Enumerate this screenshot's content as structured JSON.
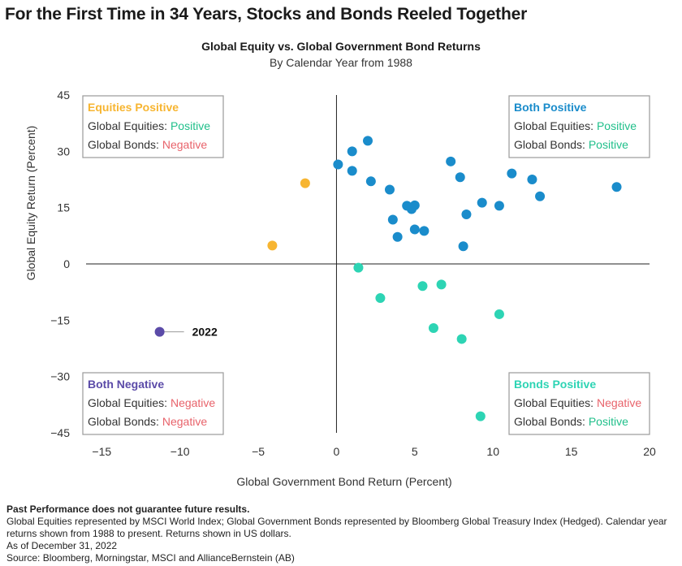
{
  "headline": "For the First Time in 34 Years, Stocks and Bonds Reeled Together",
  "colors": {
    "both_positive": "#1a8ccb",
    "equities_positive": "#f7b531",
    "bonds_positive": "#2dd4b4",
    "both_negative": "#5b4ba8",
    "text_positive": "#1fbf8a",
    "text_negative": "#e8636b",
    "box_border": "#9a9a9a"
  },
  "chart_data": {
    "type": "scatter",
    "title": "Global Equity vs. Global Government Bond Returns",
    "subtitle": "By Calendar Year from 1988",
    "xlabel": "Global Government Bond Return (Percent)",
    "ylabel": "Global Equity Return (Percent)",
    "xlim": [
      -16,
      20
    ],
    "ylim": [
      -45,
      45
    ],
    "x_ticks": [
      -15,
      -10,
      -5,
      0,
      5,
      10,
      15,
      20
    ],
    "y_ticks": [
      45,
      30,
      15,
      0,
      -15,
      -30,
      -45
    ],
    "x_tick_labels": [
      "−15",
      "−10",
      "−5",
      "0",
      "5",
      "10",
      "15",
      "20"
    ],
    "y_tick_labels": [
      "45",
      "30",
      "15",
      "0",
      "−15",
      "−30",
      "−45"
    ],
    "grid": false,
    "series": [
      {
        "key": "both_positive",
        "points": [
          [
            0.1,
            26.5
          ],
          [
            1.0,
            30.0
          ],
          [
            1.0,
            24.8
          ],
          [
            2.0,
            32.8
          ],
          [
            2.2,
            22.0
          ],
          [
            3.4,
            19.8
          ],
          [
            3.6,
            11.8
          ],
          [
            3.9,
            7.2
          ],
          [
            4.5,
            15.5
          ],
          [
            4.8,
            14.6
          ],
          [
            5.0,
            15.6
          ],
          [
            5.0,
            9.2
          ],
          [
            5.6,
            8.8
          ],
          [
            7.3,
            27.3
          ],
          [
            7.9,
            23.1
          ],
          [
            8.1,
            4.7
          ],
          [
            8.3,
            13.2
          ],
          [
            9.3,
            16.3
          ],
          [
            10.4,
            15.5
          ],
          [
            11.2,
            24.1
          ],
          [
            12.5,
            22.5
          ],
          [
            13.0,
            18.0
          ],
          [
            17.9,
            20.5
          ]
        ]
      },
      {
        "key": "equities_positive",
        "points": [
          [
            -2.0,
            21.5
          ],
          [
            -4.1,
            4.9
          ]
        ]
      },
      {
        "key": "bonds_positive",
        "points": [
          [
            1.4,
            -1.0
          ],
          [
            2.8,
            -9.1
          ],
          [
            5.5,
            -5.9
          ],
          [
            6.7,
            -5.5
          ],
          [
            6.2,
            -17.1
          ],
          [
            8.0,
            -20.0
          ],
          [
            10.4,
            -13.4
          ],
          [
            9.2,
            -40.6
          ]
        ]
      },
      {
        "key": "both_negative",
        "points": [
          [
            -11.3,
            -18.1
          ]
        ],
        "label": "2022"
      }
    ],
    "quadrant_boxes": [
      {
        "key": "equities_positive",
        "position": "top-left",
        "title": "Equities Positive",
        "line1_label": "Global Equities:",
        "line1_value": "Positive",
        "line1_sign": "positive",
        "line2_label": "Global Bonds:",
        "line2_value": "Negative",
        "line2_sign": "negative"
      },
      {
        "key": "both_positive",
        "position": "top-right",
        "title": "Both Positive",
        "line1_label": "Global Equities:",
        "line1_value": "Positive",
        "line1_sign": "positive",
        "line2_label": "Global Bonds:",
        "line2_value": "Positive",
        "line2_sign": "positive"
      },
      {
        "key": "both_negative",
        "position": "bottom-left",
        "title": "Both Negative",
        "line1_label": "Global Equities:",
        "line1_value": "Negative",
        "line1_sign": "negative",
        "line2_label": "Global Bonds:",
        "line2_value": "Negative",
        "line2_sign": "negative"
      },
      {
        "key": "bonds_positive",
        "position": "bottom-right",
        "title": "Bonds Positive",
        "line1_label": "Global Equities:",
        "line1_value": "Negative",
        "line1_sign": "negative",
        "line2_label": "Global Bonds:",
        "line2_value": "Positive",
        "line2_sign": "positive"
      }
    ]
  },
  "footnotes": {
    "bold": "Past Performance does not guarantee future results.",
    "line1": "Global Equities represented by MSCI World Index; Global Government Bonds represented by Bloomberg Global Treasury Index (Hedged). Calendar year",
    "line2": "returns shown from 1988 to present. Returns shown in US dollars.",
    "line3": "As of December 31, 2022",
    "line4": "Source: Bloomberg, Morningstar, MSCI and AllianceBernstein (AB)"
  }
}
